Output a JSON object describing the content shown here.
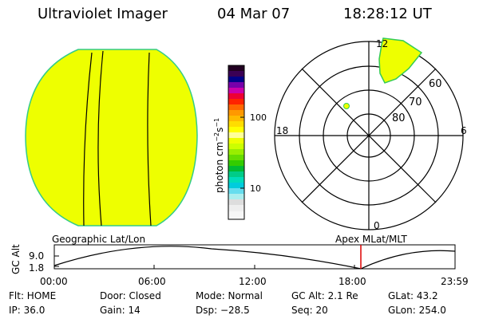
{
  "header": {
    "title": "Ultraviolet Imager",
    "date": "04 Mar 07",
    "time": "18:28:12 UT"
  },
  "colorbar": {
    "unit_label": "photon cm",
    "tick_100": "100",
    "tick_10": "10"
  },
  "polar_plot": {
    "mlt_labels": {
      "top": "12",
      "left": "18",
      "right": "6",
      "bottom": "0"
    },
    "lat_labels": [
      "60",
      "70",
      "80"
    ],
    "oval_color": "#eeff00",
    "oval_edge_color": "#33cc55"
  },
  "disk": {
    "fill_color": "#eeff00",
    "edge_color": "#33cc88"
  },
  "timeline": {
    "left_label": "Geographic Lat/Lon",
    "right_label": "Apex  MLat/MLT",
    "axis_label": "GC Alt",
    "y_ticks": [
      "9.0",
      "1.8"
    ],
    "x_ticks": [
      "00:00",
      "06:00",
      "12:00",
      "18:00",
      "23:59"
    ],
    "current_time_marker": "18:28",
    "marker_color": "#dd0000"
  },
  "info": {
    "filter": "Flt: HOME",
    "ip": "IP: 36.0",
    "door": "Door: Closed",
    "gain": "Gain: 14",
    "mode": "Mode: Normal",
    "dsp": "Dsp:  −28.5",
    "gc_alt": "GC Alt: 2.1 Re",
    "seq": "Seq: 20",
    "glat": "GLat:  43.2",
    "glon": "GLon: 254.0"
  }
}
